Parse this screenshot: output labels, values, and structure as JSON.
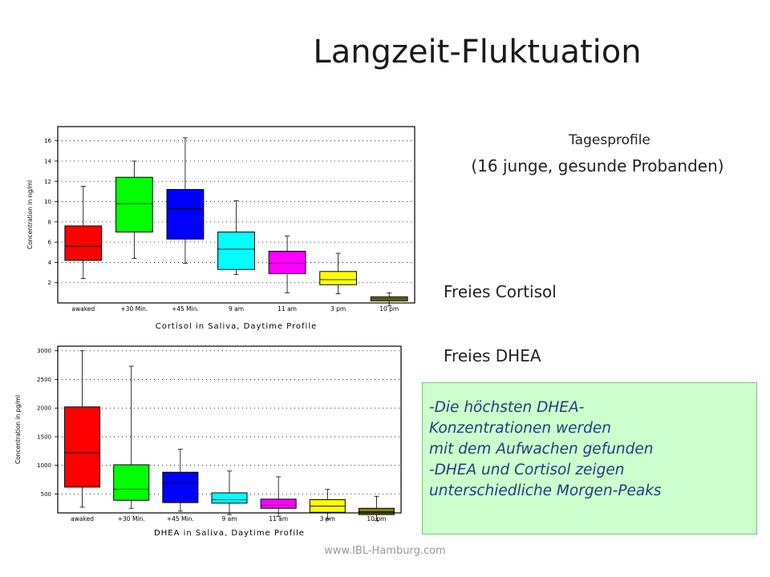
{
  "title": "Langzeit-Fluktuation",
  "subtitle_1": "Tagesprofile",
  "subtitle_2": "(16 junge, gesunde Probanden)",
  "label_cortisol": "Freies Cortisol",
  "label_dhea": "Freies DHEA",
  "notes": [
    "-Die höchsten DHEA-",
    " Konzentrationen werden",
    " mit dem Aufwachen gefunden",
    "-DHEA und Cortisol zeigen",
    " unterschiedliche Morgen-Peaks"
  ],
  "footer": "www.IBL-Hamburg.com",
  "colors": {
    "red": "#ff0000",
    "green": "#00ff00",
    "blue": "#0000ff",
    "cyan": "#00ffff",
    "magenta": "#ff00ff",
    "yellow": "#ffff00",
    "olive": "#808000",
    "note_bg": "#ccffcc",
    "note_text": "#1f3f7f"
  },
  "chart_data": [
    {
      "type": "boxplot",
      "xlabel": "Cortisol in Saliva, Daytime Profile",
      "ylabel": "Concentration in ng/ml",
      "categories": [
        "awaked",
        "+30 Min.",
        "+45 Min.",
        "9 am",
        "11 am",
        "3 pm",
        "10 pm"
      ],
      "yticks": [
        2,
        4,
        6,
        8,
        10,
        12,
        14,
        16
      ],
      "ylim": [
        0,
        17.4
      ],
      "grid": true,
      "boxes": [
        {
          "min": 2.4,
          "q1": 4.2,
          "median": 5.6,
          "q3": 7.6,
          "max": 11.5,
          "color": "#ff0000"
        },
        {
          "min": 4.4,
          "q1": 7.0,
          "median": 9.8,
          "q3": 12.4,
          "max": 14.0,
          "color": "#00ff00"
        },
        {
          "min": 3.9,
          "q1": 6.3,
          "median": 9.3,
          "q3": 11.2,
          "max": 16.3,
          "color": "#0000ff"
        },
        {
          "min": 2.8,
          "q1": 3.3,
          "median": 5.3,
          "q3": 7.0,
          "max": 10.1,
          "color": "#00ffff"
        },
        {
          "min": 1.0,
          "q1": 2.9,
          "median": 3.9,
          "q3": 5.1,
          "max": 6.6,
          "color": "#ff00ff"
        },
        {
          "min": 0.9,
          "q1": 1.8,
          "median": 2.3,
          "q3": 3.1,
          "max": 4.9,
          "color": "#ffff00"
        },
        {
          "min": -0.3,
          "q1": 0.2,
          "median": 0.4,
          "q3": 0.6,
          "max": 1.0,
          "color": "#808000"
        }
      ]
    },
    {
      "type": "boxplot",
      "xlabel": "DHEA in Saliva, Daytime Profile",
      "ylabel": "Concentration in pg/ml",
      "categories": [
        "awaked",
        "+30 Min.",
        "+45 Min.",
        "9 am",
        "11 am",
        "3 pm",
        "10 pm"
      ],
      "yticks": [
        500,
        1000,
        1500,
        2000,
        2500,
        3000
      ],
      "ylim": [
        170,
        3080
      ],
      "grid": true,
      "boxes": [
        {
          "min": 270,
          "q1": 620,
          "median": 1220,
          "q3": 2020,
          "max": 3000,
          "color": "#ff0000"
        },
        {
          "min": 250,
          "q1": 390,
          "median": 580,
          "q3": 1010,
          "max": 2730,
          "color": "#00ff00"
        },
        {
          "min": 200,
          "q1": 350,
          "median": 690,
          "q3": 880,
          "max": 1280,
          "color": "#0000ff"
        },
        {
          "min": 140,
          "q1": 340,
          "median": 400,
          "q3": 520,
          "max": 900,
          "color": "#00ffff"
        },
        {
          "min": 110,
          "q1": 250,
          "median": 300,
          "q3": 410,
          "max": 800,
          "color": "#ff00ff"
        },
        {
          "min": 60,
          "q1": 180,
          "median": 290,
          "q3": 400,
          "max": 580,
          "color": "#ffff00"
        },
        {
          "min": 40,
          "q1": 140,
          "median": 190,
          "q3": 250,
          "max": 460,
          "color": "#808000"
        }
      ]
    }
  ]
}
